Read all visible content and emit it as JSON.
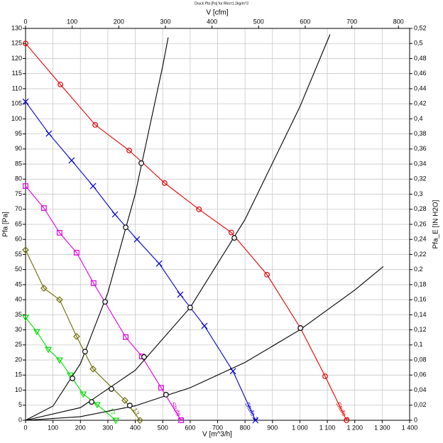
{
  "chart_data": {
    "type": "line",
    "title": "Druck Pfa [Pa] for Rho=1.2kg/m^3",
    "x_label": "V [m^3/h]",
    "x2_label": "V [cfm]",
    "y_label": "Pfa [Pa]",
    "y2_label": "Pfa_E [IN H2O]",
    "xlim": [
      0,
      1400
    ],
    "xticks": [
      0,
      100,
      200,
      300,
      400,
      500,
      600,
      700,
      800,
      900,
      {
        "value": 1000,
        "label": "1 000"
      },
      {
        "value": 1100,
        "label": "1 100"
      },
      {
        "value": 1200,
        "label": "1 200"
      },
      {
        "value": 1300,
        "label": "1 300"
      },
      {
        "value": 1400,
        "label": "1 400"
      }
    ],
    "x2lim": [
      0,
      824
    ],
    "x2ticks": [
      0,
      100,
      200,
      300,
      400,
      500,
      600,
      700,
      800
    ],
    "ylim": [
      0,
      130
    ],
    "yticks": [
      0,
      5,
      10,
      15,
      20,
      25,
      30,
      35,
      40,
      45,
      50,
      55,
      60,
      65,
      70,
      75,
      80,
      85,
      90,
      95,
      100,
      105,
      110,
      115,
      120,
      125,
      130
    ],
    "y2lim": [
      0,
      0.52
    ],
    "y2ticks": [
      0,
      {
        "value": 0.02,
        "label": "0,02"
      },
      {
        "value": 0.04,
        "label": "0,04"
      },
      {
        "value": 0.06,
        "label": "0,06"
      },
      {
        "value": 0.08,
        "label": "0,08"
      },
      {
        "value": 0.1,
        "label": "0,1"
      },
      {
        "value": 0.12,
        "label": "0,12"
      },
      {
        "value": 0.14,
        "label": "0,14"
      },
      {
        "value": 0.16,
        "label": "0,16"
      },
      {
        "value": 0.18,
        "label": "0,18"
      },
      {
        "value": 0.2,
        "label": "0,2"
      },
      {
        "value": 0.22,
        "label": "0,22"
      },
      {
        "value": 0.24,
        "label": "0,24"
      },
      {
        "value": 0.26,
        "label": "0,26"
      },
      {
        "value": 0.28,
        "label": "0,28"
      },
      {
        "value": 0.3,
        "label": "0,3"
      },
      {
        "value": 0.32,
        "label": "0,32"
      },
      {
        "value": 0.34,
        "label": "0,34"
      },
      {
        "value": 0.36,
        "label": "0,36"
      },
      {
        "value": 0.38,
        "label": "0,38"
      },
      {
        "value": 0.4,
        "label": "0,4"
      },
      {
        "value": 0.42,
        "label": "0,42"
      },
      {
        "value": 0.44,
        "label": "0,44"
      },
      {
        "value": 0.46,
        "label": "0,46"
      },
      {
        "value": 0.48,
        "label": "0,48"
      },
      {
        "value": 0.5,
        "label": "0,5"
      },
      {
        "value": 0.52,
        "label": "0,52"
      }
    ],
    "grid": true,
    "series": [
      {
        "name": "Stufe 5",
        "color": "#e00000",
        "marker": "circle",
        "x": [
          0,
          127,
          254,
          378,
          507,
          632,
          750,
          880,
          1002,
          1092,
          1170
        ],
        "values": [
          125,
          111.4,
          98,
          89.5,
          78.7,
          70,
          62.3,
          48.3,
          30.6,
          14.6,
          0
        ]
      },
      {
        "name": "Stufe 3",
        "color": "#0000cc",
        "marker": "x",
        "x": [
          0,
          85,
          168,
          246,
          326,
          406,
          487,
          564,
          652,
          756,
          838
        ],
        "values": [
          105.7,
          95.1,
          86.2,
          77.7,
          68.3,
          60,
          52,
          41.7,
          31.3,
          16.3,
          0
        ]
      },
      {
        "name": "Stufe 2",
        "color": "#e000e0",
        "marker": "square",
        "x": [
          0,
          67,
          124,
          186,
          248,
          365,
          424,
          494,
          567
        ],
        "values": [
          77.7,
          70.4,
          62.2,
          55.6,
          45.5,
          27.6,
          21.2,
          10.8,
          0
        ]
      },
      {
        "name": "13",
        "color": "#6b6b00",
        "marker": "diamond",
        "x": [
          0,
          67,
          124,
          186,
          246,
          362,
          417
        ],
        "values": [
          56.5,
          43.8,
          40,
          27.8,
          17,
          6.6,
          0
        ]
      },
      {
        "name": "17",
        "color": "#00dd00",
        "marker": "triangle",
        "x": [
          0,
          41,
          83,
          124,
          163,
          210,
          261,
          329
        ],
        "values": [
          34.1,
          29.4,
          23.5,
          20,
          15,
          8.7,
          5.2,
          0
        ]
      },
      {
        "color": "#000000",
        "marker": "none",
        "x": [
          0,
          100,
          200,
          300,
          400,
          500,
          520
        ],
        "values": [
          0,
          4.7,
          18.8,
          42.3,
          75.2,
          117.5,
          127
        ]
      },
      {
        "color": "#000000",
        "marker": "none",
        "x": [
          0,
          200,
          400,
          600,
          800,
          1000,
          1110
        ],
        "values": [
          0,
          4.2,
          16.6,
          37.4,
          66.6,
          104,
          128
        ]
      },
      {
        "color": "#000000",
        "marker": "none",
        "x": [
          0,
          200,
          400,
          600,
          800,
          1000,
          1200,
          1304
        ],
        "values": [
          0,
          1.2,
          4.8,
          10.8,
          19.2,
          30,
          43.2,
          51
        ]
      },
      {
        "color": "#000000",
        "marker": "hollow",
        "x": [
          171,
          217,
          290,
          365,
          422,
          241,
          313,
          432,
          600,
          761,
          380,
          512,
          1002
        ],
        "values": [
          13.9,
          22.8,
          39.3,
          64,
          85.3,
          6.1,
          10.4,
          21,
          37.4,
          60.5,
          4.9,
          8.5,
          30.6
        ]
      }
    ]
  }
}
